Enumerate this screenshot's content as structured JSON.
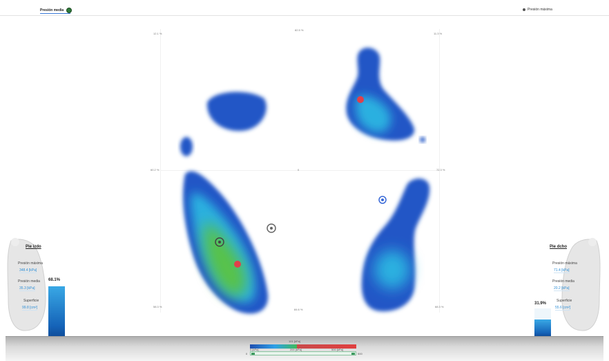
{
  "header": {
    "toggle_left_label": "Presión media",
    "toggle_right_label": "Presión máxima"
  },
  "grid": {
    "top_left": "12.1 %",
    "top_center": "82.5 %",
    "top_right": "11.3 %",
    "mid_left": "60.2 %",
    "mid_center": "0",
    "mid_right": "72.3 %",
    "bottom_left": "58.3 %",
    "bottom_center": "84.6 %",
    "bottom_right": "68.3 %"
  },
  "left_foot": {
    "title": "Pie izdo",
    "max_pressure_label": "Presión máxima",
    "max_pressure_value": "348.4 [kPa]",
    "mean_pressure_label": "Presión media",
    "mean_pressure_value": "35.3 [kPa]",
    "surface_label": "Superficie",
    "surface_value": "99.8 [cm²]",
    "percent": "68.1%",
    "percent_fraction": 0.68
  },
  "right_foot": {
    "title": "Pie dcho",
    "max_pressure_label": "Presión máxima",
    "max_pressure_value": "71.4 [kPa]",
    "mean_pressure_label": "Presión media",
    "mean_pressure_value": "20.2 [kPa]",
    "surface_label": "Superficie",
    "surface_value": "55.6 [cm²]",
    "percent": "31.9%",
    "percent_fraction": 0.32
  },
  "scale": {
    "top_label": "101 [kPa]",
    "ticks": [
      "0 [kPa]",
      "200 [kPa]",
      "500 [kPa]"
    ],
    "range_ticks": [
      "0",
      "500"
    ],
    "colors": [
      "#1f4fb0",
      "#2ea0e8",
      "#3dbb5a",
      "#e04040"
    ]
  },
  "colors": {
    "accent_blue": "#2f8fd6",
    "heat_outer": "#2356c6",
    "heat_mid": "#36b9ea",
    "heat_hot": "#48b948",
    "peak_red": "#e0404a"
  }
}
